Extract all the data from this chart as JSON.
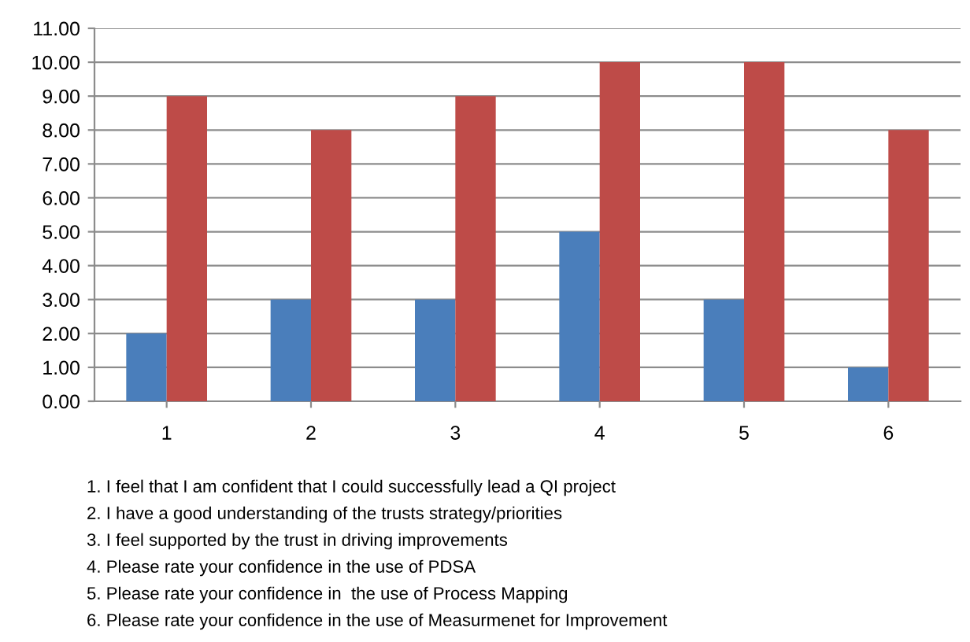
{
  "chart_data": {
    "type": "bar",
    "categories": [
      "1",
      "2",
      "3",
      "4",
      "5",
      "6"
    ],
    "series": [
      {
        "color": "#4a7ebb",
        "values": [
          2,
          3,
          3,
          5,
          3,
          1
        ]
      },
      {
        "color": "#be4b48",
        "values": [
          9,
          8,
          9,
          10,
          10,
          8
        ]
      }
    ],
    "ylim": [
      0,
      11
    ],
    "yticks": [
      {
        "value": 0,
        "label": "0.00"
      },
      {
        "value": 1,
        "label": "1.00"
      },
      {
        "value": 2,
        "label": "2.00"
      },
      {
        "value": 3,
        "label": "3.00"
      },
      {
        "value": 4,
        "label": "4.00"
      },
      {
        "value": 5,
        "label": "5.00"
      },
      {
        "value": 6,
        "label": "6.00"
      },
      {
        "value": 7,
        "label": "7.00"
      },
      {
        "value": 8,
        "label": "8.00"
      },
      {
        "value": 9,
        "label": "9.00"
      },
      {
        "value": 10,
        "label": "10.00"
      },
      {
        "value": 11,
        "label": "11.00"
      }
    ],
    "grid": "y",
    "legend": false,
    "annotations": [
      "1. I feel that I am confident that I could successfully lead a QI project",
      "2. I have a good understanding of the trusts strategy/priorities",
      "3. I feel supported by the trust in driving improvements",
      "4. Please rate your confidence in the use of PDSA",
      "5. Please rate your confidence in  the use of Process Mapping",
      "6. Please rate your confidence in the use of Measurmenet for Improvement"
    ]
  }
}
